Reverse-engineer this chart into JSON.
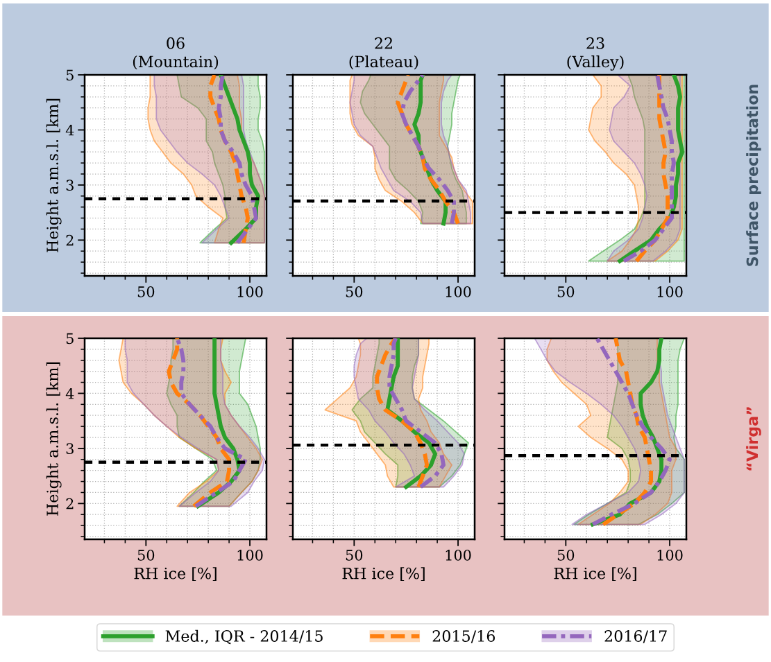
{
  "chart_data": [
    {
      "type": "line",
      "orientation": "horizontal",
      "title": "06\n(Mountain)",
      "ylabel": "Height a.m.s.l. [km]",
      "xlim": [
        20.5,
        108
      ],
      "ylim": [
        1.35,
        5
      ],
      "xticks": [
        {
          "value": 30,
          "label": null
        },
        {
          "value": 40,
          "label": null
        },
        50,
        {
          "value": 60,
          "label": null
        },
        {
          "value": 70,
          "label": null
        },
        {
          "value": 80,
          "label": null
        },
        {
          "value": 90,
          "label": null
        },
        100
      ],
      "yticks": [
        {
          "value": 1.4,
          "label": null
        },
        {
          "value": 1.6,
          "label": null
        },
        {
          "value": 1.8,
          "label": null
        },
        2,
        {
          "value": 2.2,
          "label": null
        },
        {
          "value": 2.4,
          "label": null
        },
        {
          "value": 2.6,
          "label": null
        },
        {
          "value": 2.8,
          "label": null
        },
        3,
        {
          "value": 3.2,
          "label": null
        },
        {
          "value": 3.4,
          "label": null
        },
        {
          "value": 3.6,
          "label": null
        },
        {
          "value": 3.8,
          "label": null
        },
        4,
        {
          "value": 4.2,
          "label": null
        },
        {
          "value": 4.4,
          "label": null
        },
        {
          "value": 4.6,
          "label": null
        },
        {
          "value": 4.8,
          "label": null
        },
        5
      ],
      "grid": true,
      "legend": "bottom",
      "ref_lines": [
        {
          "axis": "y",
          "value": 2.75,
          "color": "#000000",
          "line_style": "dashed"
        }
      ],
      "series": [
        {
          "name": "Med., IQR - 2014/15",
          "color": "#2ca02c",
          "line_style": "solid",
          "x": [
            1.95,
            2.2,
            2.4,
            2.6,
            2.8,
            3.0,
            3.2,
            3.4,
            3.6,
            3.8,
            4.0,
            4.2,
            4.4,
            4.6,
            4.8,
            5.0
          ],
          "values": [
            91,
            98,
            103,
            103,
            104,
            101,
            100,
            100,
            99,
            97,
            95,
            94,
            92,
            90,
            88,
            86
          ],
          "lower": [
            76,
            83,
            89,
            88,
            88,
            87,
            85,
            83,
            82,
            79,
            79,
            79,
            75,
            67,
            66,
            65
          ],
          "upper": [
            107,
            107,
            107,
            107,
            107,
            107,
            107,
            107,
            107,
            106,
            104,
            104,
            105,
            105,
            104,
            104
          ]
        },
        {
          "name": "2015/16",
          "color": "#ff7f0e",
          "line_style": "dashed",
          "x": [
            1.95,
            2.2,
            2.4,
            2.6,
            2.8,
            3.0,
            3.2,
            3.4,
            3.6,
            3.8,
            4.0,
            4.2,
            4.4,
            4.6,
            4.8,
            5.0
          ],
          "values": [
            97,
            98,
            99,
            98,
            96,
            95,
            94,
            93,
            91,
            88,
            86,
            85,
            83,
            81,
            81,
            83
          ],
          "lower": [
            83,
            85,
            87,
            80,
            74,
            72,
            68,
            62,
            58,
            54,
            52,
            51,
            51,
            52,
            52,
            52
          ],
          "upper": [
            107,
            107,
            107,
            107,
            107,
            106,
            104,
            102,
            99,
            97,
            96,
            96,
            95,
            95,
            95,
            94
          ]
        },
        {
          "name": "2016/17",
          "color": "#9467bd",
          "line_style": "dashdot",
          "x": [
            1.95,
            2.2,
            2.4,
            2.6,
            2.8,
            3.0,
            3.2,
            3.4,
            3.6,
            3.8,
            4.0,
            4.2,
            4.4,
            4.6,
            4.8,
            5.0
          ],
          "values": [
            94,
            99,
            103,
            102,
            101,
            98,
            96,
            95,
            92,
            88,
            86,
            86,
            85,
            86,
            86,
            87
          ],
          "lower": [
            77,
            84,
            90,
            88,
            86,
            83,
            77,
            70,
            65,
            61,
            57,
            55,
            55,
            55,
            54,
            54
          ],
          "upper": [
            107,
            107,
            107,
            107,
            107,
            106,
            104,
            102,
            100,
            98,
            97,
            97,
            97,
            97,
            97,
            96
          ]
        }
      ]
    },
    {
      "type": "line",
      "orientation": "horizontal",
      "title": "22\n(Plateau)",
      "xlim": [
        20.5,
        108
      ],
      "ylim": [
        1.35,
        5
      ],
      "tick_labels": "x",
      "xticks": [
        {
          "value": 30,
          "label": null
        },
        {
          "value": 40,
          "label": null
        },
        50,
        {
          "value": 60,
          "label": null
        },
        {
          "value": 70,
          "label": null
        },
        {
          "value": 80,
          "label": null
        },
        {
          "value": 90,
          "label": null
        },
        100
      ],
      "yticks": [
        {
          "value": 1.4,
          "label": null
        },
        {
          "value": 1.6,
          "label": null
        },
        {
          "value": 1.8,
          "label": null
        },
        2,
        {
          "value": 2.2,
          "label": null
        },
        {
          "value": 2.4,
          "label": null
        },
        {
          "value": 2.6,
          "label": null
        },
        {
          "value": 2.8,
          "label": null
        },
        3,
        {
          "value": 3.2,
          "label": null
        },
        {
          "value": 3.4,
          "label": null
        },
        {
          "value": 3.6,
          "label": null
        },
        {
          "value": 3.8,
          "label": null
        },
        4,
        {
          "value": 4.2,
          "label": null
        },
        {
          "value": 4.4,
          "label": null
        },
        {
          "value": 4.6,
          "label": null
        },
        {
          "value": 4.8,
          "label": null
        },
        5
      ],
      "grid": true,
      "ref_lines": [
        {
          "axis": "y",
          "value": 2.71,
          "color": "#000000",
          "line_style": "dashed"
        }
      ],
      "series": [
        {
          "color": "#2ca02c",
          "line_style": "solid",
          "x": [
            2.3,
            2.5,
            2.7,
            2.9,
            3.1,
            3.3,
            3.5,
            3.7,
            3.9,
            4.1,
            4.3,
            4.5,
            4.7,
            4.9,
            5.0
          ],
          "values": [
            93,
            94,
            94,
            90,
            87,
            85,
            83,
            81,
            81,
            79,
            81,
            82,
            82,
            82,
            83
          ],
          "lower": [
            82,
            83,
            81,
            76,
            70,
            67,
            67,
            67,
            63,
            59,
            55,
            53,
            54,
            57,
            58
          ],
          "upper": [
            104,
            104,
            103,
            102,
            99,
            97,
            96,
            95,
            96,
            97,
            97,
            98,
            99,
            100,
            101
          ]
        },
        {
          "color": "#ff7f0e",
          "line_style": "dashed",
          "x": [
            2.3,
            2.5,
            2.7,
            2.9,
            3.1,
            3.3,
            3.5,
            3.7,
            3.9,
            4.1,
            4.3,
            4.5,
            4.7,
            4.9,
            5.0
          ],
          "values": [
            100,
            98,
            94,
            91,
            87,
            84,
            83,
            81,
            78,
            75,
            73,
            71,
            73,
            75,
            76
          ],
          "lower": [
            83,
            79,
            73,
            65,
            62,
            60,
            60,
            59,
            52,
            49,
            48,
            48,
            48,
            48,
            49
          ],
          "upper": [
            107,
            107,
            107,
            103,
            100,
            98,
            97,
            94,
            91,
            91,
            91,
            91,
            92,
            93,
            93
          ]
        },
        {
          "color": "#9467bd",
          "line_style": "dashdot",
          "x": [
            2.3,
            2.5,
            2.7,
            2.9,
            3.1,
            3.3,
            3.5,
            3.7,
            3.9,
            4.1,
            4.3,
            4.5,
            4.7,
            4.9,
            5.0
          ],
          "values": [
            97,
            98,
            98,
            95,
            91,
            86,
            83,
            81,
            78,
            75,
            73,
            74,
            77,
            81,
            83
          ],
          "lower": [
            83,
            82,
            77,
            69,
            66,
            63,
            61,
            59,
            53,
            50,
            49,
            48,
            49,
            50,
            50
          ],
          "upper": [
            106,
            106,
            105,
            104,
            100,
            98,
            96,
            95,
            93,
            92,
            92,
            92,
            93,
            95,
            97
          ]
        }
      ]
    },
    {
      "type": "line",
      "orientation": "horizontal",
      "title": "23\n(Valley)",
      "xlim": [
        20.5,
        108
      ],
      "ylim": [
        1.35,
        5
      ],
      "tick_labels": "x",
      "annotations": [
        "Surface precipitation"
      ],
      "xticks": [
        {
          "value": 30,
          "label": null
        },
        {
          "value": 40,
          "label": null
        },
        50,
        {
          "value": 60,
          "label": null
        },
        {
          "value": 70,
          "label": null
        },
        {
          "value": 80,
          "label": null
        },
        {
          "value": 90,
          "label": null
        },
        100
      ],
      "yticks": [
        {
          "value": 1.4,
          "label": null
        },
        {
          "value": 1.6,
          "label": null
        },
        {
          "value": 1.8,
          "label": null
        },
        2,
        {
          "value": 2.2,
          "label": null
        },
        {
          "value": 2.4,
          "label": null
        },
        {
          "value": 2.6,
          "label": null
        },
        {
          "value": 2.8,
          "label": null
        },
        3,
        {
          "value": 3.2,
          "label": null
        },
        {
          "value": 3.4,
          "label": null
        },
        {
          "value": 3.6,
          "label": null
        },
        {
          "value": 3.8,
          "label": null
        },
        4,
        {
          "value": 4.2,
          "label": null
        },
        {
          "value": 4.4,
          "label": null
        },
        {
          "value": 4.6,
          "label": null
        },
        {
          "value": 4.8,
          "label": null
        },
        5
      ],
      "grid": true,
      "ref_lines": [
        {
          "axis": "y",
          "value": 2.5,
          "color": "#000000",
          "line_style": "dashed"
        }
      ],
      "series": [
        {
          "color": "#2ca02c",
          "line_style": "solid",
          "x": [
            1.62,
            1.8,
            2.0,
            2.2,
            2.4,
            2.6,
            2.8,
            3.0,
            3.2,
            3.4,
            3.6,
            3.8,
            4.0,
            4.2,
            4.4,
            4.6,
            4.8,
            5.0
          ],
          "values": [
            76,
            83,
            91,
            95,
            100,
            102,
            103,
            103,
            104,
            104,
            106,
            105,
            104,
            104,
            104,
            105,
            104,
            102
          ],
          "lower": [
            61,
            68,
            76,
            83,
            86,
            88,
            88,
            88,
            88,
            88,
            88,
            88,
            88,
            87,
            85,
            83,
            82,
            80
          ],
          "upper": [
            107,
            107,
            107,
            107,
            107,
            107,
            107,
            107,
            107,
            107,
            107,
            107,
            107,
            107,
            107,
            107,
            107,
            107
          ]
        },
        {
          "color": "#ff7f0e",
          "line_style": "dashed",
          "x": [
            1.62,
            1.8,
            2.0,
            2.2,
            2.4,
            2.6,
            2.8,
            3.0,
            3.2,
            3.4,
            3.6,
            3.8,
            4.0,
            4.2,
            4.4,
            4.6,
            4.8,
            5.0
          ],
          "values": [
            84,
            88,
            93,
            96,
            99,
            99,
            99,
            98,
            97,
            97,
            98,
            97,
            96,
            95,
            95,
            95,
            95,
            95
          ],
          "lower": [
            70,
            77,
            81,
            84,
            85,
            85,
            84,
            83,
            79,
            73,
            69,
            64,
            61,
            62,
            63,
            67,
            67,
            63
          ],
          "upper": [
            93,
            99,
            104,
            106,
            106,
            106,
            106,
            106,
            106,
            106,
            106,
            106,
            106,
            106,
            106,
            106,
            106,
            106
          ]
        },
        {
          "color": "#9467bd",
          "line_style": "dashdot",
          "x": [
            1.62,
            1.8,
            2.0,
            2.2,
            2.4,
            2.6,
            2.8,
            3.0,
            3.2,
            3.4,
            3.6,
            3.8,
            4.0,
            4.2,
            4.4,
            4.6,
            4.8,
            5.0
          ],
          "values": [
            78,
            86,
            93,
            97,
            101,
            101,
            101,
            101,
            101,
            102,
            101,
            101,
            100,
            99,
            97,
            96,
            95,
            94
          ],
          "lower": [
            70,
            73,
            80,
            85,
            87,
            88,
            89,
            88,
            86,
            83,
            78,
            73,
            71,
            72,
            73,
            78,
            81,
            75
          ],
          "upper": [
            92,
            98,
            103,
            105,
            105,
            105,
            105,
            105,
            105,
            105,
            105,
            105,
            105,
            105,
            105,
            105,
            105,
            105
          ]
        }
      ]
    },
    {
      "type": "line",
      "orientation": "horizontal",
      "xlabel": "RH ice [%]",
      "ylabel": "Height a.m.s.l. [km]",
      "xlim": [
        20.5,
        108
      ],
      "ylim": [
        1.35,
        5
      ],
      "xticks": [
        {
          "value": 30,
          "label": null
        },
        {
          "value": 40,
          "label": null
        },
        50,
        {
          "value": 60,
          "label": null
        },
        {
          "value": 70,
          "label": null
        },
        {
          "value": 80,
          "label": null
        },
        {
          "value": 90,
          "label": null
        },
        100
      ],
      "yticks": [
        {
          "value": 1.4,
          "label": null
        },
        {
          "value": 1.6,
          "label": null
        },
        {
          "value": 1.8,
          "label": null
        },
        2,
        {
          "value": 2.2,
          "label": null
        },
        {
          "value": 2.4,
          "label": null
        },
        {
          "value": 2.6,
          "label": null
        },
        {
          "value": 2.8,
          "label": null
        },
        3,
        {
          "value": 3.2,
          "label": null
        },
        {
          "value": 3.4,
          "label": null
        },
        {
          "value": 3.6,
          "label": null
        },
        {
          "value": 3.8,
          "label": null
        },
        4,
        {
          "value": 4.2,
          "label": null
        },
        {
          "value": 4.4,
          "label": null
        },
        {
          "value": 4.6,
          "label": null
        },
        {
          "value": 4.8,
          "label": null
        },
        5
      ],
      "grid": true,
      "ref_lines": [
        {
          "axis": "y",
          "value": 2.75,
          "color": "#000000",
          "line_style": "dashed"
        }
      ],
      "series": [
        {
          "color": "#2ca02c",
          "line_style": "solid",
          "x": [
            1.95,
            2.2,
            2.4,
            2.6,
            2.8,
            3.0,
            3.2,
            3.4,
            3.6,
            3.8,
            4.0,
            4.2,
            4.4,
            4.6,
            4.8,
            5.0
          ],
          "values": [
            75,
            85,
            91,
            95,
            94,
            92,
            88,
            86,
            85,
            84,
            83,
            83,
            83,
            83,
            83,
            83
          ],
          "lower": [
            66,
            73,
            78,
            84,
            82,
            74,
            66,
            65,
            65,
            62,
            60,
            61,
            62,
            62,
            63,
            63
          ],
          "upper": [
            90,
            96,
            101,
            104,
            105,
            105,
            104,
            103,
            101,
            99,
            95,
            95,
            95,
            96,
            97,
            98
          ]
        },
        {
          "color": "#ff7f0e",
          "line_style": "dashed",
          "x": [
            1.95,
            2.2,
            2.4,
            2.6,
            2.8,
            3.0,
            3.2,
            3.4,
            3.6,
            3.8,
            4.0,
            4.2,
            4.4,
            4.6,
            4.8,
            5.0
          ],
          "values": [
            73,
            81,
            89,
            90,
            90,
            86,
            84,
            80,
            76,
            71,
            65,
            62,
            61,
            63,
            65,
            65
          ],
          "lower": [
            65,
            71,
            79,
            85,
            84,
            74,
            66,
            60,
            54,
            49,
            43,
            39,
            38,
            37,
            38,
            39
          ],
          "upper": [
            90,
            96,
            101,
            104,
            106,
            103,
            99,
            95,
            91,
            88,
            88,
            91,
            88,
            86,
            86,
            87
          ]
        },
        {
          "color": "#9467bd",
          "line_style": "dashdot",
          "x": [
            1.95,
            2.2,
            2.4,
            2.6,
            2.8,
            3.0,
            3.2,
            3.4,
            3.6,
            3.8,
            4.0,
            4.2,
            4.4,
            4.6,
            4.8,
            5.0
          ],
          "values": [
            74,
            84,
            92,
            95,
            98,
            88,
            84,
            81,
            76,
            71,
            67,
            67,
            68,
            68,
            67,
            65
          ],
          "lower": [
            66,
            74,
            81,
            85,
            84,
            75,
            67,
            60,
            54,
            49,
            44,
            41,
            41,
            41,
            40,
            40
          ],
          "upper": [
            91,
            99,
            102,
            106,
            107,
            104,
            100,
            95,
            91,
            88,
            87,
            87,
            87,
            86,
            86,
            86
          ]
        }
      ]
    },
    {
      "type": "line",
      "orientation": "horizontal",
      "xlabel": "RH ice [%]",
      "xlim": [
        20.5,
        108
      ],
      "ylim": [
        1.35,
        5
      ],
      "tick_labels": "x",
      "xticks": [
        {
          "value": 30,
          "label": null
        },
        {
          "value": 40,
          "label": null
        },
        50,
        {
          "value": 60,
          "label": null
        },
        {
          "value": 70,
          "label": null
        },
        {
          "value": 80,
          "label": null
        },
        {
          "value": 90,
          "label": null
        },
        100
      ],
      "yticks": [
        {
          "value": 1.4,
          "label": null
        },
        {
          "value": 1.6,
          "label": null
        },
        {
          "value": 1.8,
          "label": null
        },
        2,
        {
          "value": 2.2,
          "label": null
        },
        {
          "value": 2.4,
          "label": null
        },
        {
          "value": 2.6,
          "label": null
        },
        {
          "value": 2.8,
          "label": null
        },
        3,
        {
          "value": 3.2,
          "label": null
        },
        {
          "value": 3.4,
          "label": null
        },
        {
          "value": 3.6,
          "label": null
        },
        {
          "value": 3.8,
          "label": null
        },
        4,
        {
          "value": 4.2,
          "label": null
        },
        {
          "value": 4.4,
          "label": null
        },
        {
          "value": 4.6,
          "label": null
        },
        {
          "value": 4.8,
          "label": null
        },
        5
      ],
      "grid": true,
      "ref_lines": [
        {
          "axis": "y",
          "value": 3.06,
          "color": "#000000",
          "line_style": "dashed"
        }
      ],
      "series": [
        {
          "color": "#2ca02c",
          "line_style": "solid",
          "x": [
            2.3,
            2.5,
            2.7,
            2.9,
            3.1,
            3.3,
            3.5,
            3.7,
            3.9,
            4.1,
            4.3,
            4.5,
            4.7,
            4.9,
            5.0
          ],
          "values": [
            75,
            82,
            87,
            89,
            86,
            79,
            73,
            66,
            67,
            68,
            69,
            71,
            71,
            71,
            71
          ],
          "lower": [
            70,
            71,
            71,
            65,
            60,
            55,
            53,
            49,
            53,
            59,
            59,
            60,
            61,
            62,
            62
          ],
          "upper": [
            91,
            97,
            101,
            103,
            105,
            99,
            93,
            86,
            79,
            78,
            78,
            79,
            81,
            81,
            81
          ]
        },
        {
          "color": "#ff7f0e",
          "line_style": "dashed",
          "x": [
            2.3,
            2.5,
            2.7,
            2.9,
            3.1,
            3.3,
            3.5,
            3.7,
            3.9,
            4.1,
            4.3,
            4.5,
            4.7,
            4.9,
            5.0
          ],
          "values": [
            81,
            83,
            85,
            84,
            82,
            79,
            73,
            65,
            62,
            61,
            61,
            63,
            65,
            68,
            70
          ],
          "lower": [
            69,
            66,
            65,
            61,
            57,
            53,
            51,
            36,
            42,
            48,
            51,
            52,
            53,
            53,
            52
          ],
          "upper": [
            91,
            94,
            97,
            93,
            91,
            87,
            85,
            82,
            81,
            83,
            83,
            84,
            85,
            86,
            86
          ]
        },
        {
          "color": "#9467bd",
          "line_style": "dashdot",
          "x": [
            2.3,
            2.5,
            2.7,
            2.9,
            3.1,
            3.3,
            3.5,
            3.7,
            3.9,
            4.1,
            4.3,
            4.5,
            4.7,
            4.9,
            5.0
          ],
          "values": [
            82,
            89,
            93,
            92,
            89,
            82,
            75,
            73,
            70,
            67,
            67,
            68,
            69,
            69,
            70
          ],
          "lower": [
            70,
            79,
            77,
            74,
            69,
            65,
            60,
            57,
            52,
            51,
            50,
            50,
            51,
            53,
            56
          ],
          "upper": [
            93,
            98,
            102,
            103,
            100,
            95,
            90,
            84,
            79,
            78,
            79,
            80,
            81,
            81,
            81
          ]
        }
      ]
    },
    {
      "type": "line",
      "orientation": "horizontal",
      "xlabel": "RH ice [%]",
      "xlim": [
        20.5,
        108
      ],
      "ylim": [
        1.35,
        5
      ],
      "tick_labels": "x",
      "annotations": [
        "“Virga”"
      ],
      "xticks": [
        {
          "value": 30,
          "label": null
        },
        {
          "value": 40,
          "label": null
        },
        50,
        {
          "value": 60,
          "label": null
        },
        {
          "value": 70,
          "label": null
        },
        {
          "value": 80,
          "label": null
        },
        {
          "value": 90,
          "label": null
        },
        100
      ],
      "yticks": [
        {
          "value": 1.4,
          "label": null
        },
        {
          "value": 1.6,
          "label": null
        },
        {
          "value": 1.8,
          "label": null
        },
        2,
        {
          "value": 2.2,
          "label": null
        },
        {
          "value": 2.4,
          "label": null
        },
        {
          "value": 2.6,
          "label": null
        },
        {
          "value": 2.8,
          "label": null
        },
        3,
        {
          "value": 3.2,
          "label": null
        },
        {
          "value": 3.4,
          "label": null
        },
        {
          "value": 3.6,
          "label": null
        },
        {
          "value": 3.8,
          "label": null
        },
        4,
        {
          "value": 4.2,
          "label": null
        },
        {
          "value": 4.4,
          "label": null
        },
        {
          "value": 4.6,
          "label": null
        },
        {
          "value": 4.8,
          "label": null
        },
        5
      ],
      "grid": true,
      "ref_lines": [
        {
          "axis": "y",
          "value": 2.87,
          "color": "#000000",
          "line_style": "dashed"
        }
      ],
      "series": [
        {
          "color": "#2ca02c",
          "line_style": "solid",
          "x": [
            1.62,
            1.8,
            2.0,
            2.2,
            2.4,
            2.6,
            2.8,
            3.0,
            3.2,
            3.4,
            3.6,
            3.8,
            4.0,
            4.2,
            4.4,
            4.6,
            4.8,
            5.0
          ],
          "values": [
            63,
            76,
            81,
            91,
            95,
            96,
            96,
            94,
            92,
            89,
            87,
            86,
            86,
            91,
            94,
            95,
            95,
            96
          ],
          "lower": [
            54,
            61,
            70,
            79,
            81,
            81,
            80,
            77,
            70,
            71,
            72,
            73,
            74,
            75,
            75,
            75,
            75,
            75
          ],
          "upper": [
            85,
            94,
            101,
            107,
            107,
            107,
            107,
            103,
            102,
            103,
            103,
            104,
            104,
            104,
            104,
            104,
            105,
            107
          ]
        },
        {
          "color": "#ff7f0e",
          "line_style": "dashed",
          "x": [
            1.62,
            1.8,
            2.0,
            2.2,
            2.4,
            2.6,
            2.8,
            3.0,
            3.2,
            3.4,
            3.6,
            3.8,
            4.0,
            4.2,
            4.4,
            4.6,
            4.8,
            5.0
          ],
          "values": [
            68,
            75,
            83,
            88,
            91,
            91,
            90,
            89,
            88,
            85,
            84,
            82,
            81,
            80,
            79,
            76,
            75,
            74
          ],
          "lower": [
            56,
            63,
            71,
            76,
            80,
            80,
            77,
            70,
            62,
            56,
            62,
            60,
            54,
            48,
            44,
            41,
            41,
            43
          ],
          "upper": [
            86,
            93,
            99,
            101,
            101,
            101,
            103,
            103,
            100,
            99,
            98,
            97,
            96,
            95,
            95,
            94,
            94,
            94
          ]
        },
        {
          "color": "#9467bd",
          "line_style": "dashdot",
          "x": [
            1.62,
            1.8,
            2.0,
            2.2,
            2.4,
            2.6,
            2.8,
            3.0,
            3.2,
            3.4,
            3.6,
            3.8,
            4.0,
            4.2,
            4.4,
            4.6,
            4.8,
            5.0
          ],
          "values": [
            63,
            72,
            83,
            91,
            95,
            98,
            100,
            96,
            91,
            87,
            84,
            82,
            80,
            77,
            74,
            71,
            68,
            65
          ],
          "lower": [
            53,
            60,
            70,
            80,
            85,
            86,
            85,
            83,
            80,
            77,
            73,
            67,
            60,
            52,
            45,
            41,
            38,
            35
          ],
          "upper": [
            88,
            96,
            103,
            107,
            107,
            107,
            107,
            105,
            103,
            101,
            99,
            98,
            97,
            96,
            96,
            95,
            95,
            95
          ]
        }
      ]
    }
  ]
}
